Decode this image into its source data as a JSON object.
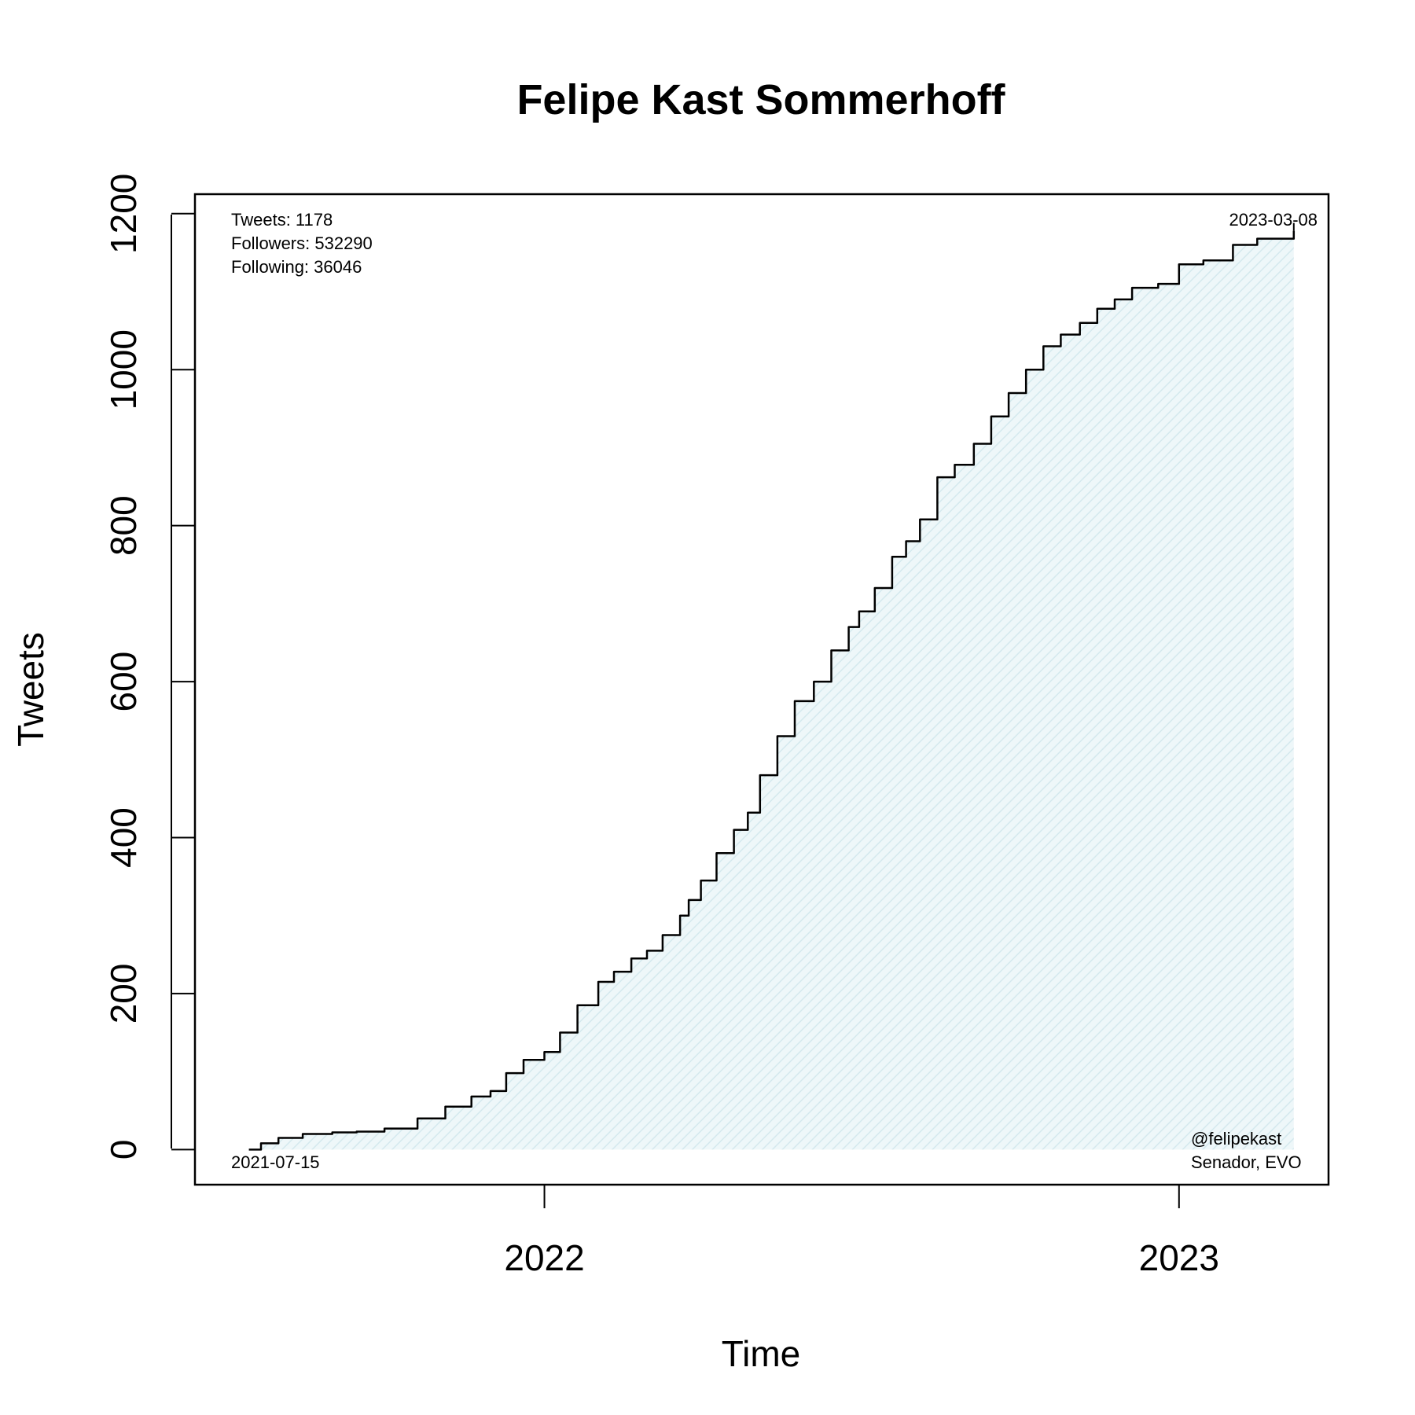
{
  "chart_data": {
    "type": "area",
    "title": "Felipe Kast Sommerhoff",
    "xlabel": "Time",
    "ylabel": "Tweets",
    "x_ticks": [
      "2022",
      "2023"
    ],
    "y_ticks": [
      0,
      200,
      400,
      600,
      800,
      1000,
      1200
    ],
    "xlim": [
      "2021-06-14",
      "2023-03-28"
    ],
    "ylim": [
      -45,
      1225
    ],
    "grid": false,
    "fill_color": "#e3f1f4",
    "line_color": "#000000",
    "series": [
      {
        "x": [
          "2021-07-15",
          "2021-07-22",
          "2021-08-01",
          "2021-08-15",
          "2021-09-01",
          "2021-09-15",
          "2021-10-01",
          "2021-10-20",
          "2021-11-05",
          "2021-11-20",
          "2021-12-01",
          "2021-12-10",
          "2021-12-20",
          "2022-01-01",
          "2022-01-10",
          "2022-01-20",
          "2022-02-01",
          "2022-02-10",
          "2022-02-20",
          "2022-03-01",
          "2022-03-10",
          "2022-03-20",
          "2022-03-25",
          "2022-04-01",
          "2022-04-10",
          "2022-04-20",
          "2022-04-28",
          "2022-05-05",
          "2022-05-15",
          "2022-05-25",
          "2022-06-05",
          "2022-06-15",
          "2022-06-25",
          "2022-07-01",
          "2022-07-10",
          "2022-07-20",
          "2022-07-28",
          "2022-08-05",
          "2022-08-15",
          "2022-08-25",
          "2022-09-05",
          "2022-09-15",
          "2022-09-25",
          "2022-10-05",
          "2022-10-15",
          "2022-10-25",
          "2022-11-05",
          "2022-11-15",
          "2022-11-25",
          "2022-12-05",
          "2022-12-20",
          "2023-01-01",
          "2023-01-15",
          "2023-02-01",
          "2023-02-15",
          "2023-03-08"
        ],
        "y": [
          0,
          8,
          15,
          20,
          22,
          23,
          27,
          40,
          55,
          68,
          75,
          98,
          115,
          125,
          150,
          185,
          215,
          228,
          245,
          255,
          275,
          300,
          320,
          345,
          380,
          410,
          432,
          480,
          530,
          575,
          600,
          640,
          670,
          690,
          720,
          760,
          780,
          808,
          862,
          878,
          905,
          940,
          970,
          1000,
          1030,
          1045,
          1060,
          1078,
          1090,
          1105,
          1110,
          1135,
          1140,
          1160,
          1168,
          1178
        ]
      }
    ],
    "annotations": {
      "stats": [
        "Tweets: 1178",
        "Followers: 532290",
        "Following: 36046"
      ],
      "start_date": "2021-07-15",
      "end_date": "2023-03-08",
      "handle": "@felipekast",
      "role": "Senador, EVO"
    }
  }
}
